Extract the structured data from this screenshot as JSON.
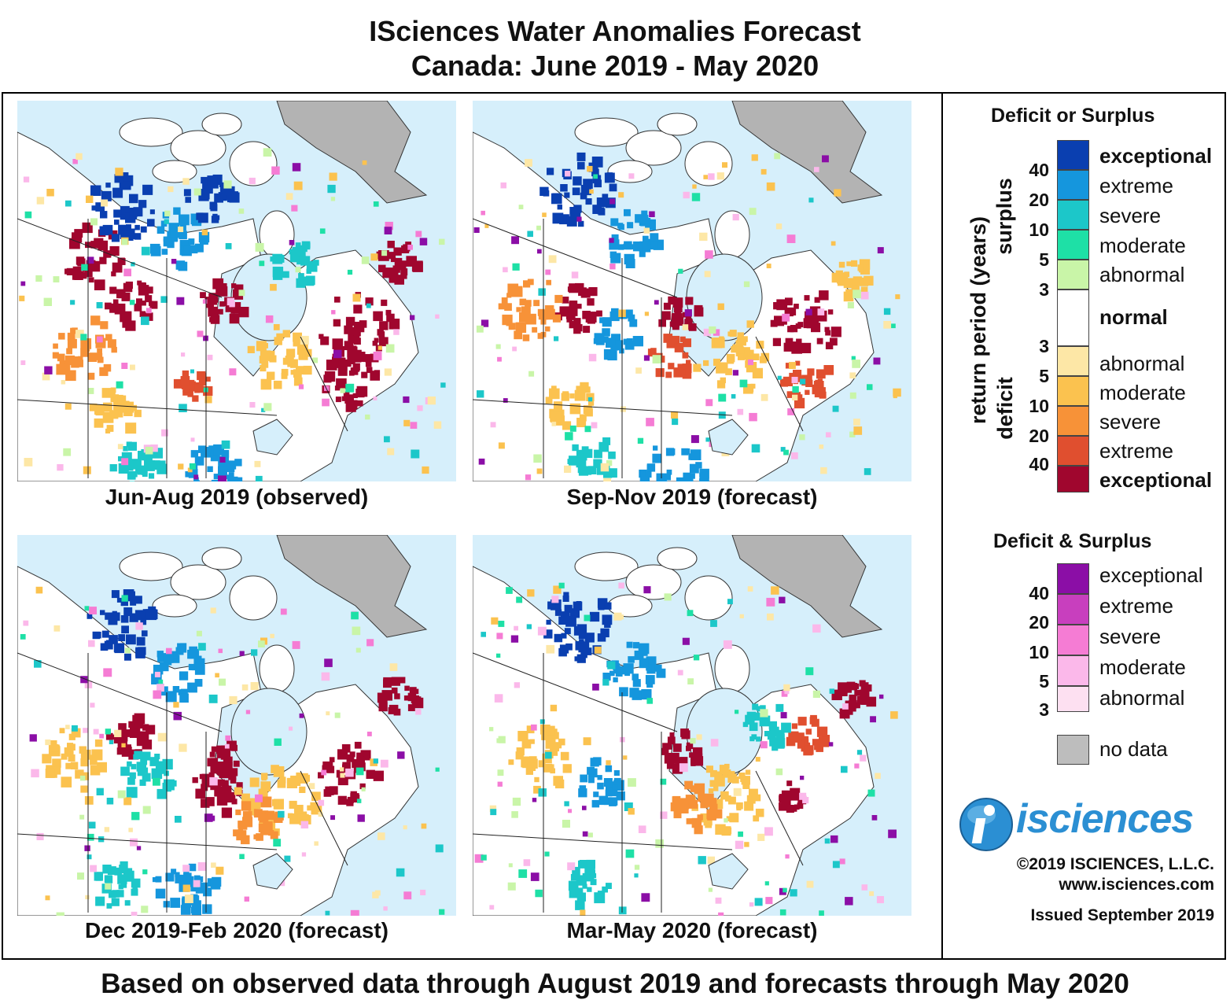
{
  "title": {
    "line1": "ISciences Water Anomalies Forecast",
    "line2": "Canada: June 2019 - May 2020"
  },
  "panels": [
    {
      "caption": "Jun-Aug 2019 (observed)"
    },
    {
      "caption": "Sep-Nov 2019 (forecast)"
    },
    {
      "caption": "Dec 2019-Feb 2020 (forecast)"
    },
    {
      "caption": "Mar-May 2020 (forecast)"
    }
  ],
  "legend": {
    "deficit_or_surplus": {
      "heading": "Deficit or Surplus",
      "axis_label": "return period (years)",
      "surplus_label": "surplus",
      "deficit_label": "deficit",
      "surplus_classes": [
        {
          "label": "exceptional",
          "color": "#0a3fb0"
        },
        {
          "label": "extreme",
          "color": "#1596dd"
        },
        {
          "label": "severe",
          "color": "#1cc7c9"
        },
        {
          "label": "moderate",
          "color": "#1ee0a6"
        },
        {
          "label": "abnormal",
          "color": "#c9f5a8"
        }
      ],
      "normal": {
        "label": "normal",
        "color": "#ffffff"
      },
      "deficit_classes": [
        {
          "label": "abnormal",
          "color": "#fde7a6"
        },
        {
          "label": "moderate",
          "color": "#fbc24f"
        },
        {
          "label": "severe",
          "color": "#f79238"
        },
        {
          "label": "extreme",
          "color": "#e04f2f"
        },
        {
          "label": "exceptional",
          "color": "#a0062e"
        }
      ],
      "surplus_ticks": [
        "40",
        "20",
        "10",
        "5",
        "3"
      ],
      "deficit_ticks": [
        "3",
        "5",
        "10",
        "20",
        "40"
      ]
    },
    "deficit_and_surplus": {
      "heading": "Deficit & Surplus",
      "classes": [
        {
          "label": "exceptional",
          "color": "#8b0ea6"
        },
        {
          "label": "extreme",
          "color": "#c83fbe"
        },
        {
          "label": "severe",
          "color": "#f57cd4"
        },
        {
          "label": "moderate",
          "color": "#fbb8ea"
        },
        {
          "label": "abnormal",
          "color": "#fde0f1"
        }
      ],
      "ticks": [
        "40",
        "20",
        "10",
        "5",
        "3"
      ]
    },
    "no_data": {
      "label": "no data",
      "color": "#bdbdbd"
    }
  },
  "logo_text": "isciences",
  "copyright": "©2019 ISCIENCES, L.L.C.",
  "website": "www.isciences.com",
  "issued": "Issued September 2019",
  "footer": "Based on observed data through August 2019 and forecasts through May 2020",
  "colors": {
    "ocean": "#d6effb",
    "land": "#ffffff",
    "greenland": "#b3b3b3"
  }
}
